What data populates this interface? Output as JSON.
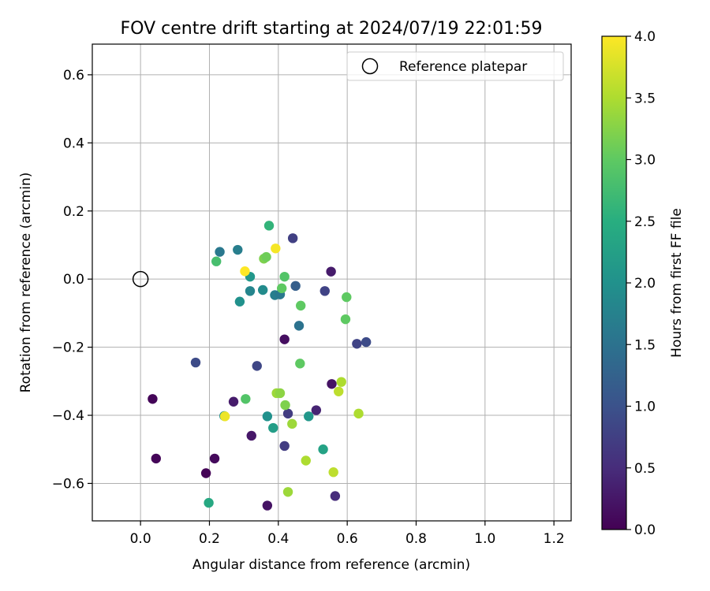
{
  "chart_data": {
    "type": "scatter",
    "title": "FOV centre drift starting at 2024/07/19 22:01:59",
    "xlabel": "Angular distance from reference (arcmin)",
    "ylabel": "Rotation from reference (arcmin)",
    "xlim": [
      -0.14,
      1.25
    ],
    "ylim": [
      -0.71,
      0.69
    ],
    "xticks": [
      0.0,
      0.2,
      0.4,
      0.6,
      0.8,
      1.0,
      1.2
    ],
    "xtick_labels": [
      "0.0",
      "0.2",
      "0.4",
      "0.6",
      "0.8",
      "1.0",
      "1.2"
    ],
    "yticks": [
      -0.6,
      -0.4,
      -0.2,
      0.0,
      0.2,
      0.4,
      0.6
    ],
    "ytick_labels": [
      "−0.6",
      "−0.4",
      "−0.2",
      "0.0",
      "0.2",
      "0.4",
      "0.6"
    ],
    "grid": true,
    "legend": {
      "position": "top-right",
      "entries": [
        "Reference platepar"
      ]
    },
    "reference_point": {
      "x": 0.0,
      "y": 0.0
    },
    "colorbar": {
      "label": "Hours from first FF file",
      "colormap": "viridis",
      "range": [
        0.0,
        4.0
      ],
      "ticks": [
        0.0,
        0.5,
        1.0,
        1.5,
        2.0,
        2.5,
        3.0,
        3.5,
        4.0
      ],
      "tick_labels": [
        "0.0",
        "0.5",
        "1.0",
        "1.5",
        "2.0",
        "2.5",
        "3.0",
        "3.5",
        "4.0"
      ]
    },
    "points": [
      {
        "x": 0.035,
        "y": -0.352,
        "h": 0.05
      },
      {
        "x": 0.045,
        "y": -0.527,
        "h": 0.05
      },
      {
        "x": 0.19,
        "y": -0.57,
        "h": 0.02
      },
      {
        "x": 0.215,
        "y": -0.527,
        "h": 0.1
      },
      {
        "x": 0.27,
        "y": -0.36,
        "h": 0.3
      },
      {
        "x": 0.322,
        "y": -0.46,
        "h": 0.25
      },
      {
        "x": 0.368,
        "y": -0.665,
        "h": 0.2
      },
      {
        "x": 0.418,
        "y": -0.177,
        "h": 0.15
      },
      {
        "x": 0.51,
        "y": -0.385,
        "h": 0.4
      },
      {
        "x": 0.553,
        "y": 0.022,
        "h": 0.3
      },
      {
        "x": 0.555,
        "y": -0.308,
        "h": 0.2
      },
      {
        "x": 0.565,
        "y": -0.637,
        "h": 0.5
      },
      {
        "x": 0.16,
        "y": -0.245,
        "h": 0.9
      },
      {
        "x": 0.338,
        "y": -0.255,
        "h": 0.85
      },
      {
        "x": 0.442,
        "y": 0.12,
        "h": 0.75
      },
      {
        "x": 0.418,
        "y": -0.49,
        "h": 0.7
      },
      {
        "x": 0.428,
        "y": -0.395,
        "h": 0.7
      },
      {
        "x": 0.535,
        "y": -0.035,
        "h": 0.8
      },
      {
        "x": 0.628,
        "y": -0.19,
        "h": 0.8
      },
      {
        "x": 0.655,
        "y": -0.185,
        "h": 0.9
      },
      {
        "x": 0.45,
        "y": -0.02,
        "h": 1.2
      },
      {
        "x": 0.46,
        "y": -0.137,
        "h": 1.5
      },
      {
        "x": 0.23,
        "y": 0.08,
        "h": 1.6
      },
      {
        "x": 0.282,
        "y": 0.086,
        "h": 1.7
      },
      {
        "x": 0.318,
        "y": -0.035,
        "h": 1.8
      },
      {
        "x": 0.39,
        "y": -0.047,
        "h": 1.7
      },
      {
        "x": 0.405,
        "y": -0.045,
        "h": 1.6
      },
      {
        "x": 0.355,
        "y": -0.032,
        "h": 1.9
      },
      {
        "x": 0.288,
        "y": -0.066,
        "h": 2.0
      },
      {
        "x": 0.318,
        "y": 0.007,
        "h": 2.1
      },
      {
        "x": 0.243,
        "y": -0.402,
        "h": 2.0
      },
      {
        "x": 0.368,
        "y": -0.403,
        "h": 2.0
      },
      {
        "x": 0.488,
        "y": -0.403,
        "h": 2.1
      },
      {
        "x": 0.385,
        "y": -0.437,
        "h": 2.2
      },
      {
        "x": 0.53,
        "y": -0.5,
        "h": 2.3
      },
      {
        "x": 0.198,
        "y": -0.657,
        "h": 2.4
      },
      {
        "x": 0.373,
        "y": 0.157,
        "h": 2.6
      },
      {
        "x": 0.22,
        "y": 0.052,
        "h": 2.8
      },
      {
        "x": 0.418,
        "y": 0.007,
        "h": 2.9
      },
      {
        "x": 0.41,
        "y": -0.027,
        "h": 3.0
      },
      {
        "x": 0.465,
        "y": -0.078,
        "h": 3.0
      },
      {
        "x": 0.598,
        "y": -0.053,
        "h": 3.0
      },
      {
        "x": 0.595,
        "y": -0.118,
        "h": 3.0
      },
      {
        "x": 0.305,
        "y": -0.352,
        "h": 2.9
      },
      {
        "x": 0.463,
        "y": -0.248,
        "h": 3.0
      },
      {
        "x": 0.358,
        "y": 0.06,
        "h": 3.2
      },
      {
        "x": 0.365,
        "y": 0.065,
        "h": 3.1
      },
      {
        "x": 0.395,
        "y": -0.335,
        "h": 3.4
      },
      {
        "x": 0.405,
        "y": -0.335,
        "h": 3.3
      },
      {
        "x": 0.42,
        "y": -0.37,
        "h": 3.2
      },
      {
        "x": 0.44,
        "y": -0.425,
        "h": 3.4
      },
      {
        "x": 0.48,
        "y": -0.533,
        "h": 3.5
      },
      {
        "x": 0.428,
        "y": -0.625,
        "h": 3.4
      },
      {
        "x": 0.56,
        "y": -0.567,
        "h": 3.6
      },
      {
        "x": 0.575,
        "y": -0.33,
        "h": 3.6
      },
      {
        "x": 0.583,
        "y": -0.302,
        "h": 3.5
      },
      {
        "x": 0.633,
        "y": -0.395,
        "h": 3.5
      },
      {
        "x": 0.392,
        "y": 0.09,
        "h": 3.95
      },
      {
        "x": 0.303,
        "y": 0.023,
        "h": 4.0
      },
      {
        "x": 0.245,
        "y": -0.403,
        "h": 3.9
      }
    ]
  }
}
